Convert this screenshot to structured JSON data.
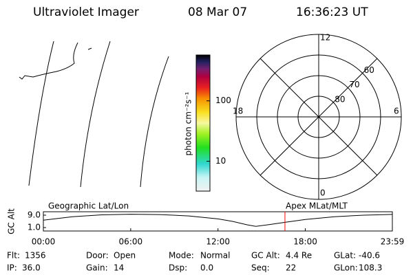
{
  "header": {
    "title": "Ultraviolet Imager",
    "date": "08 Mar 07",
    "time": "16:36:23 UT"
  },
  "colorbar": {
    "label": "photon cm⁻²s⁻¹",
    "log_scale": true,
    "lim": [
      3.2,
      575
    ],
    "ticks": [
      10,
      100
    ]
  },
  "polar": {
    "mlt_labels": [
      12,
      6,
      0,
      18
    ],
    "lat_rings": [
      80,
      70,
      60
    ]
  },
  "chart_data": {
    "type": "line",
    "ylabel": "GC Alt",
    "left_note": "Geographic Lat/Lon",
    "right_note": "Apex MLat/MLT",
    "x": [
      0,
      2,
      4,
      6,
      8,
      10,
      12,
      13,
      14,
      14.6,
      15.5,
      16.6,
      18,
      20,
      22,
      23.98
    ],
    "values": [
      5.8,
      8.0,
      9.2,
      9.6,
      9.4,
      8.5,
      6.6,
      5.0,
      2.8,
      1.8,
      2.9,
      4.4,
      6.2,
      8.0,
      9.0,
      9.5
    ],
    "color": "#000000",
    "current_time": 16.6,
    "current_color": "#ff0000",
    "xlim": [
      0,
      23.98
    ],
    "ylim": [
      -1.2,
      11.2
    ],
    "xticks": [
      {
        "value": 0,
        "label": "00:00"
      },
      {
        "value": 6,
        "label": "06:00"
      },
      {
        "value": 12,
        "label": "12:00"
      },
      {
        "value": 18,
        "label": "18:00"
      },
      {
        "value": 23.98,
        "label": "23:59"
      }
    ],
    "yticks": [
      {
        "value": 9,
        "label": "9.0"
      },
      {
        "value": 1,
        "label": "1.0"
      }
    ]
  },
  "info": [
    [
      "Flt:",
      "1356"
    ],
    [
      "Door:",
      "Open"
    ],
    [
      "Mode:",
      "Normal"
    ],
    [
      "GC Alt:",
      "4.4 Re"
    ],
    [
      "GLat:",
      "-40.6"
    ],
    [
      "IP:",
      "36.0"
    ],
    [
      "Gain:",
      "14"
    ],
    [
      "Dsp:",
      "0.0"
    ],
    [
      "Seq:",
      "22"
    ],
    [
      "GLon:",
      "108.3"
    ]
  ]
}
